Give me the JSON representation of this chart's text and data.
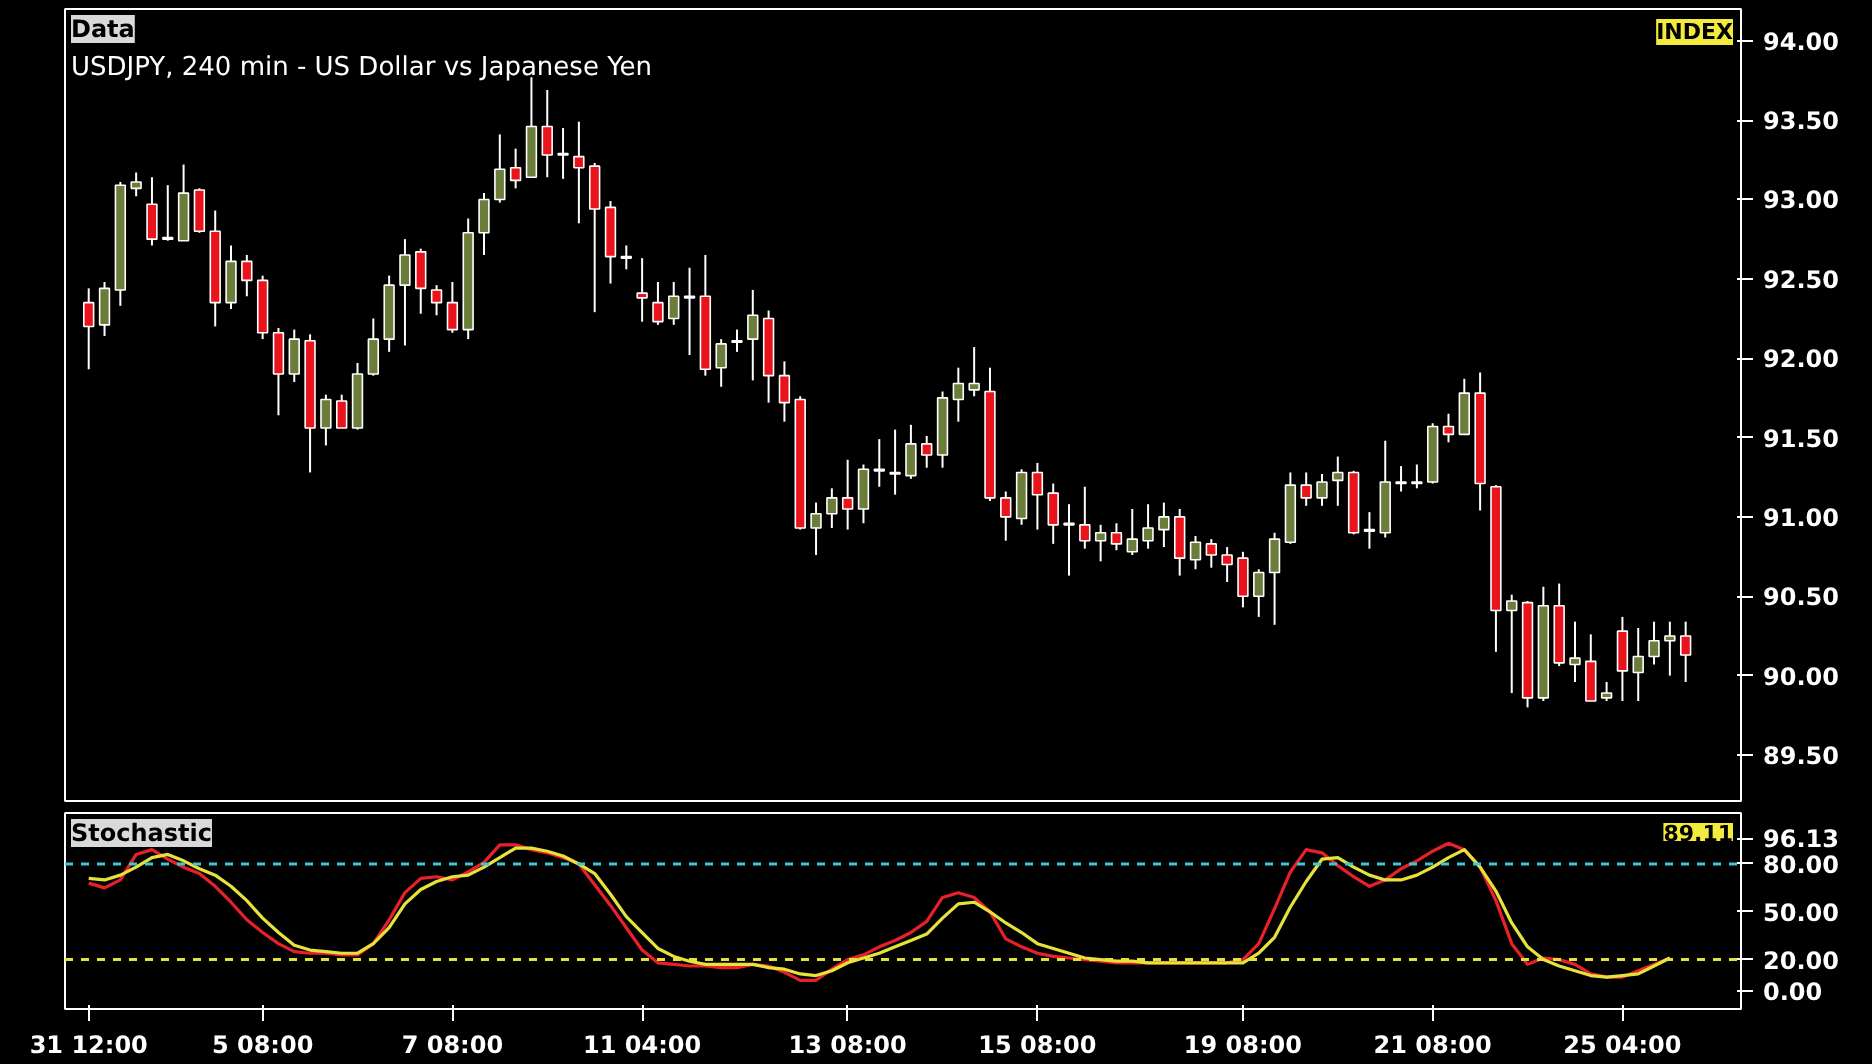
{
  "chart_data": [
    {
      "type": "candlestick",
      "title": "Data",
      "subtitle": "USDJPY, 240 min - US Dollar vs Japanese Yen",
      "annotations": [
        "INDEX"
      ],
      "tick_labels": "y",
      "categories": [
        null,
        null,
        null,
        null,
        null,
        null,
        null,
        null,
        null,
        null,
        null,
        null,
        null,
        null,
        null,
        null,
        null,
        null,
        null,
        null,
        null,
        null,
        null,
        null,
        null,
        null,
        null,
        null,
        null,
        null,
        null,
        null,
        null,
        null,
        null,
        null,
        null,
        null,
        null,
        null,
        null,
        null,
        null,
        null,
        null,
        null,
        null,
        null,
        null,
        null,
        null,
        null,
        null,
        null,
        null,
        null,
        null,
        null,
        null,
        null,
        null,
        null,
        null,
        null,
        null,
        null,
        null,
        null,
        null,
        null,
        null,
        null,
        null,
        null,
        null,
        null,
        null,
        null,
        null,
        null,
        null,
        null,
        null,
        null,
        null,
        null,
        null,
        null,
        null,
        null,
        null,
        null,
        null,
        null,
        null,
        null,
        null,
        null,
        null,
        null,
        null,
        null
      ],
      "ylim": [
        89.21,
        94.2
      ],
      "yticks": [
        {
          "value": 89.5,
          "label": "89.50"
        },
        {
          "value": 90.0,
          "label": "90.00"
        },
        {
          "value": 90.5,
          "label": "90.50"
        },
        {
          "value": 91.0,
          "label": "91.00"
        },
        {
          "value": 91.5,
          "label": "91.50"
        },
        {
          "value": 92.0,
          "label": "92.00"
        },
        {
          "value": 92.5,
          "label": "92.50"
        },
        {
          "value": 93.0,
          "label": "93.00"
        },
        {
          "value": 93.5,
          "label": "93.50"
        },
        {
          "value": 94.0,
          "label": "94.00"
        }
      ],
      "ohlc": [
        [
          92.35,
          92.44,
          91.93,
          92.2
        ],
        [
          92.21,
          92.48,
          92.14,
          92.44
        ],
        [
          92.43,
          93.11,
          92.33,
          93.09
        ],
        [
          93.07,
          93.17,
          93.02,
          93.11
        ],
        [
          92.97,
          93.14,
          92.71,
          92.75
        ],
        [
          92.76,
          93.09,
          92.74,
          92.75
        ],
        [
          92.74,
          93.22,
          92.74,
          93.04
        ],
        [
          93.06,
          93.07,
          92.79,
          92.8
        ],
        [
          92.8,
          92.93,
          92.2,
          92.35
        ],
        [
          92.35,
          92.71,
          92.31,
          92.61
        ],
        [
          92.61,
          92.65,
          92.39,
          92.49
        ],
        [
          92.49,
          92.52,
          92.12,
          92.16
        ],
        [
          92.16,
          92.19,
          91.64,
          91.9
        ],
        [
          91.9,
          92.18,
          91.85,
          92.12
        ],
        [
          92.11,
          92.15,
          91.28,
          91.56
        ],
        [
          91.56,
          91.77,
          91.45,
          91.74
        ],
        [
          91.73,
          91.77,
          91.56,
          91.56
        ],
        [
          91.56,
          91.97,
          91.55,
          91.9
        ],
        [
          91.9,
          92.25,
          91.89,
          92.12
        ],
        [
          92.12,
          92.52,
          92.04,
          92.46
        ],
        [
          92.46,
          92.75,
          92.08,
          92.65
        ],
        [
          92.67,
          92.69,
          92.28,
          92.44
        ],
        [
          92.43,
          92.46,
          92.27,
          92.35
        ],
        [
          92.35,
          92.48,
          92.16,
          92.18
        ],
        [
          92.18,
          92.88,
          92.12,
          92.79
        ],
        [
          92.79,
          93.04,
          92.65,
          93.0
        ],
        [
          93.0,
          93.41,
          92.98,
          93.19
        ],
        [
          93.2,
          93.32,
          93.07,
          93.12
        ],
        [
          93.14,
          93.77,
          93.14,
          93.46
        ],
        [
          93.46,
          93.69,
          93.14,
          93.28
        ],
        [
          93.28,
          93.45,
          93.13,
          93.29
        ],
        [
          93.27,
          93.49,
          92.85,
          93.2
        ],
        [
          93.21,
          93.23,
          92.29,
          92.94
        ],
        [
          92.95,
          92.99,
          92.47,
          92.64
        ],
        [
          92.64,
          92.71,
          92.56,
          92.63
        ],
        [
          92.41,
          92.63,
          92.23,
          92.38
        ],
        [
          92.35,
          92.48,
          92.21,
          92.23
        ],
        [
          92.25,
          92.48,
          92.21,
          92.39
        ],
        [
          92.38,
          92.57,
          92.02,
          92.39
        ],
        [
          92.39,
          92.65,
          91.89,
          91.93
        ],
        [
          91.94,
          92.12,
          91.82,
          92.09
        ],
        [
          92.1,
          92.18,
          92.04,
          92.11
        ],
        [
          92.12,
          92.43,
          91.86,
          92.27
        ],
        [
          92.25,
          92.3,
          91.72,
          91.89
        ],
        [
          91.89,
          91.98,
          91.6,
          91.72
        ],
        [
          91.74,
          91.76,
          90.92,
          90.93
        ],
        [
          90.93,
          91.09,
          90.76,
          91.02
        ],
        [
          91.02,
          91.18,
          90.93,
          91.12
        ],
        [
          91.12,
          91.36,
          90.92,
          91.05
        ],
        [
          91.05,
          91.33,
          90.96,
          91.3
        ],
        [
          91.29,
          91.49,
          91.19,
          91.3
        ],
        [
          91.28,
          91.55,
          91.14,
          91.27
        ],
        [
          91.26,
          91.58,
          91.24,
          91.46
        ],
        [
          91.46,
          91.51,
          91.31,
          91.39
        ],
        [
          91.39,
          91.79,
          91.31,
          91.75
        ],
        [
          91.74,
          91.94,
          91.6,
          91.84
        ],
        [
          91.8,
          92.07,
          91.76,
          91.84
        ],
        [
          91.79,
          91.94,
          91.1,
          91.12
        ],
        [
          91.12,
          91.16,
          90.85,
          91.0
        ],
        [
          90.99,
          91.3,
          90.95,
          91.28
        ],
        [
          91.28,
          91.34,
          90.92,
          91.14
        ],
        [
          91.15,
          91.21,
          90.83,
          90.95
        ],
        [
          90.96,
          91.08,
          90.63,
          90.95
        ],
        [
          90.95,
          91.19,
          90.8,
          90.85
        ],
        [
          90.85,
          90.95,
          90.72,
          90.9
        ],
        [
          90.9,
          90.96,
          90.79,
          90.83
        ],
        [
          90.78,
          91.05,
          90.76,
          90.86
        ],
        [
          90.85,
          91.08,
          90.8,
          90.93
        ],
        [
          90.92,
          91.09,
          90.81,
          91.0
        ],
        [
          91.0,
          91.05,
          90.63,
          90.74
        ],
        [
          90.73,
          90.88,
          90.67,
          90.84
        ],
        [
          90.83,
          90.86,
          90.68,
          90.76
        ],
        [
          90.76,
          90.81,
          90.59,
          90.7
        ],
        [
          90.74,
          90.78,
          90.43,
          90.5
        ],
        [
          90.5,
          90.67,
          90.37,
          90.65
        ],
        [
          90.65,
          90.9,
          90.32,
          90.86
        ],
        [
          90.84,
          91.28,
          90.83,
          91.2
        ],
        [
          91.2,
          91.28,
          91.07,
          91.12
        ],
        [
          91.12,
          91.27,
          91.07,
          91.22
        ],
        [
          91.23,
          91.38,
          91.07,
          91.28
        ],
        [
          91.28,
          91.29,
          90.89,
          90.9
        ],
        [
          90.91,
          91.03,
          90.8,
          90.92
        ],
        [
          90.9,
          91.48,
          90.87,
          91.22
        ],
        [
          91.21,
          91.32,
          91.16,
          91.22
        ],
        [
          91.21,
          91.33,
          91.18,
          91.22
        ],
        [
          91.22,
          91.59,
          91.21,
          91.57
        ],
        [
          91.57,
          91.65,
          91.47,
          91.52
        ],
        [
          91.52,
          91.87,
          91.52,
          91.78
        ],
        [
          91.78,
          91.91,
          91.04,
          91.21
        ],
        [
          91.19,
          91.2,
          90.15,
          90.41
        ],
        [
          90.41,
          90.51,
          89.89,
          90.47
        ],
        [
          90.46,
          90.47,
          89.8,
          89.86
        ],
        [
          89.86,
          90.56,
          89.84,
          90.44
        ],
        [
          90.44,
          90.58,
          90.06,
          90.08
        ],
        [
          90.07,
          90.34,
          89.96,
          90.11
        ],
        [
          90.09,
          90.26,
          89.84,
          89.84
        ],
        [
          89.86,
          89.96,
          89.84,
          89.89
        ],
        [
          90.28,
          90.37,
          89.84,
          90.03
        ],
        [
          90.02,
          90.3,
          89.84,
          90.12
        ],
        [
          90.12,
          90.34,
          90.07,
          90.22
        ],
        [
          90.22,
          90.34,
          90.0,
          90.25
        ],
        [
          90.25,
          90.34,
          89.96,
          90.13
        ]
      ],
      "colors": [
        "#e8131b",
        "#6b7d3a",
        "#6b7d3a",
        "#6b7d3a",
        "#e8131b",
        "#e8131b",
        "#6b7d3a",
        "#e8131b",
        "#e8131b",
        "#6b7d3a",
        "#e8131b",
        "#e8131b",
        "#e8131b",
        "#6b7d3a",
        "#e8131b",
        "#6b7d3a",
        "#e8131b",
        "#6b7d3a",
        "#6b7d3a",
        "#6b7d3a",
        "#6b7d3a",
        "#e8131b",
        "#e8131b",
        "#e8131b",
        "#6b7d3a",
        "#6b7d3a",
        "#6b7d3a",
        "#e8131b",
        "#6b7d3a",
        "#e8131b",
        "#6b7d3a",
        "#e8131b",
        "#e8131b",
        "#e8131b",
        "#e8131b",
        "#e8131b",
        "#e8131b",
        "#6b7d3a",
        "#6b7d3a",
        "#e8131b",
        "#6b7d3a",
        "#6b7d3a",
        "#6b7d3a",
        "#e8131b",
        "#e8131b",
        "#e8131b",
        "#6b7d3a",
        "#6b7d3a",
        "#e8131b",
        "#6b7d3a",
        "#6b7d3a",
        "#e8131b",
        "#6b7d3a",
        "#e8131b",
        "#6b7d3a",
        "#6b7d3a",
        "#6b7d3a",
        "#e8131b",
        "#e8131b",
        "#6b7d3a",
        "#e8131b",
        "#e8131b",
        "#e8131b",
        "#e8131b",
        "#6b7d3a",
        "#e8131b",
        "#6b7d3a",
        "#6b7d3a",
        "#6b7d3a",
        "#e8131b",
        "#6b7d3a",
        "#e8131b",
        "#e8131b",
        "#e8131b",
        "#6b7d3a",
        "#6b7d3a",
        "#6b7d3a",
        "#e8131b",
        "#6b7d3a",
        "#6b7d3a",
        "#e8131b",
        "#6b7d3a",
        "#6b7d3a",
        "#6b7d3a",
        "#6b7d3a",
        "#6b7d3a",
        "#e8131b",
        "#6b7d3a",
        "#e8131b",
        "#e8131b",
        "#6b7d3a",
        "#e8131b",
        "#6b7d3a",
        "#e8131b",
        "#6b7d3a",
        "#e8131b",
        "#6b7d3a",
        "#e8131b",
        "#6b7d3a",
        "#6b7d3a",
        "#6b7d3a",
        "#e8131b"
      ]
    },
    {
      "type": "line",
      "title": "Stochastic",
      "annotations": [
        "89.11"
      ],
      "line_style": "solid",
      "categories": [
        "31 12:00",
        null,
        null,
        null,
        null,
        null,
        null,
        null,
        null,
        null,
        null,
        "5 08:00",
        null,
        null,
        null,
        null,
        null,
        null,
        null,
        null,
        null,
        null,
        null,
        "7 08:00",
        null,
        null,
        null,
        null,
        null,
        null,
        null,
        null,
        null,
        null,
        null,
        "11 04:00",
        null,
        null,
        null,
        null,
        null,
        null,
        null,
        null,
        null,
        null,
        null,
        null,
        "13 08:00",
        null,
        null,
        null,
        null,
        null,
        null,
        null,
        null,
        null,
        null,
        null,
        "15 08:00",
        null,
        null,
        null,
        null,
        null,
        null,
        null,
        null,
        null,
        null,
        null,
        null,
        "19 08:00",
        null,
        null,
        null,
        null,
        null,
        null,
        null,
        null,
        null,
        null,
        null,
        "21 08:00",
        null,
        null,
        null,
        null,
        null,
        null,
        null,
        null,
        null,
        null,
        null,
        "25 04:00",
        null,
        null,
        null,
        null
      ],
      "ylim": [
        -11,
        112
      ],
      "yticks": [
        {
          "value": 0,
          "label": "0.00"
        },
        {
          "value": 20,
          "label": "20.00"
        },
        {
          "value": 50,
          "label": "50.00"
        },
        {
          "value": 80,
          "label": "80.00"
        },
        {
          "value": 96.13,
          "label": "96.13"
        }
      ],
      "ref_lines": [
        {
          "axis": "y",
          "value": 80,
          "label": null,
          "color": "#3cc8d2",
          "line_style": "dashed"
        },
        {
          "axis": "y",
          "value": 20,
          "label": null,
          "color": "#e6e23c",
          "line_style": "dashed"
        }
      ],
      "series": [
        {
          "color": "#e8202a",
          "values": [
            68,
            65,
            70,
            86,
            89,
            83,
            78,
            74,
            66,
            56,
            45,
            37,
            30,
            25,
            24,
            24,
            23,
            23,
            30,
            45,
            62,
            71,
            72,
            70,
            75,
            81,
            92,
            92,
            89,
            87,
            84,
            80,
            67,
            54,
            40,
            26,
            18,
            17,
            16,
            16,
            15,
            15,
            17,
            16,
            12,
            7,
            7,
            14,
            20,
            23,
            28,
            32,
            37,
            44,
            59,
            62,
            59,
            50,
            33,
            28,
            24,
            22,
            21,
            20,
            19,
            18,
            18,
            18,
            18,
            18,
            18,
            18,
            18,
            20,
            30,
            52,
            75,
            89,
            87,
            79,
            72,
            66,
            70,
            77,
            82,
            88,
            93,
            89,
            78,
            57,
            30,
            17,
            21,
            20,
            17,
            11,
            9,
            9,
            13,
            17,
            21,
            null
          ]
        },
        {
          "color": "#e6e23c",
          "values": [
            71,
            70,
            73,
            78,
            84,
            86,
            82,
            77,
            73,
            66,
            57,
            46,
            37,
            29,
            26,
            25,
            24,
            24,
            30,
            40,
            55,
            64,
            69,
            72,
            73,
            78,
            84,
            90,
            90,
            88,
            85,
            80,
            74,
            61,
            47,
            37,
            27,
            22,
            19,
            17,
            17,
            17,
            17,
            15,
            14,
            11,
            10,
            13,
            18,
            21,
            24,
            28,
            32,
            36,
            46,
            55,
            56,
            50,
            43,
            37,
            30,
            27,
            24,
            21,
            20,
            19,
            19,
            18,
            18,
            18,
            18,
            18,
            18,
            18,
            24,
            34,
            53,
            69,
            83,
            84,
            78,
            73,
            70,
            70,
            73,
            78,
            84,
            89,
            78,
            63,
            43,
            28,
            20,
            16,
            13,
            10,
            9,
            10,
            11,
            16,
            21,
            null
          ]
        }
      ]
    }
  ]
}
